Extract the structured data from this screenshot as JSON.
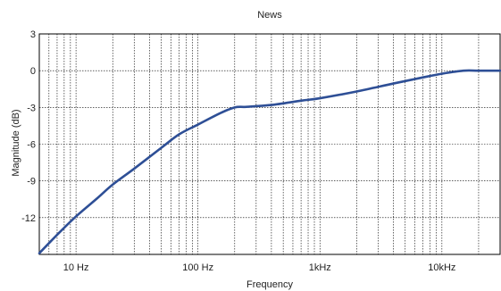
{
  "chart_data": {
    "type": "line",
    "title": "News",
    "xlabel": "Frequency",
    "ylabel": "Magnitude (dB)",
    "x_scale": "log",
    "xlim": [
      5,
      30000
    ],
    "ylim": [
      -15,
      3
    ],
    "x_ticks": [
      {
        "value": 10,
        "label": "10 Hz"
      },
      {
        "value": 100,
        "label": "100 Hz"
      },
      {
        "value": 1000,
        "label": "1kHz"
      },
      {
        "value": 10000,
        "label": "10kHz"
      }
    ],
    "y_ticks": [
      {
        "value": 3,
        "label": "3"
      },
      {
        "value": 0,
        "label": "0"
      },
      {
        "value": -3,
        "label": "-3"
      },
      {
        "value": -6,
        "label": "-6"
      },
      {
        "value": -9,
        "label": "-9"
      },
      {
        "value": -12,
        "label": "-12"
      }
    ],
    "grid": true,
    "series": [
      {
        "color": "#2e4f96",
        "x": [
          5,
          7,
          10,
          15,
          20,
          30,
          50,
          70,
          100,
          150,
          200,
          250,
          400,
          700,
          1000,
          2000,
          4000,
          7000,
          10000,
          15000,
          20000,
          30000
        ],
        "y": [
          -14.9,
          -13.4,
          -11.9,
          -10.4,
          -9.3,
          -8.0,
          -6.3,
          -5.2,
          -4.4,
          -3.5,
          -3.0,
          -2.95,
          -2.8,
          -2.45,
          -2.25,
          -1.7,
          -1.05,
          -0.55,
          -0.25,
          0.0,
          0.0,
          0.0
        ]
      }
    ]
  }
}
